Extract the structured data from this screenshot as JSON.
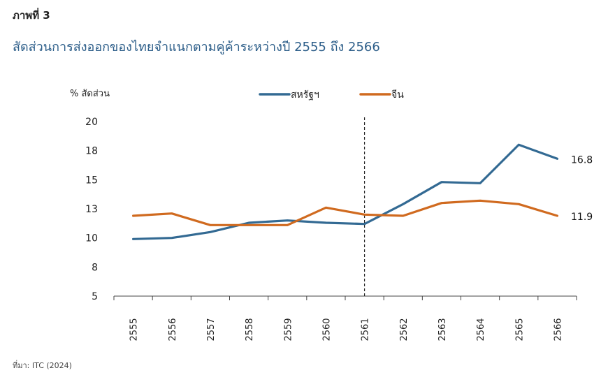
{
  "figure_label": "ภาพที่ 3",
  "title": "สัดส่วนการส่งออกของไทยจำแนกตามคู่ค้าระหว่างปี 2555 ถึง 2566",
  "source": "ที่มา: ITC (2024)",
  "chart_data": {
    "type": "line",
    "ylabel": "% สัดส่วน",
    "xlabel": "",
    "ylim": [
      5,
      20
    ],
    "y_ticks": [
      "5",
      "8",
      "10",
      "13",
      "15",
      "18",
      "20"
    ],
    "categories": [
      "2555",
      "2556",
      "2557",
      "2558",
      "2559",
      "2560",
      "2561",
      "2562",
      "2563",
      "2564",
      "2565",
      "2566"
    ],
    "series": [
      {
        "name": "สหรัฐฯ",
        "color": "#336a93",
        "values": [
          9.9,
          10.0,
          10.5,
          11.3,
          11.5,
          11.3,
          11.2,
          12.9,
          14.8,
          14.7,
          18.0,
          16.8
        ]
      },
      {
        "name": "จีน",
        "color": "#d06a1f",
        "values": [
          11.9,
          12.1,
          11.1,
          11.1,
          11.1,
          12.6,
          12.0,
          11.9,
          13.0,
          13.2,
          12.9,
          11.9
        ]
      }
    ],
    "end_labels": [
      "16.8",
      "11.9"
    ],
    "reference_line": {
      "category": "2561",
      "style": "dashed"
    },
    "legend": "top-center",
    "grid": false
  }
}
